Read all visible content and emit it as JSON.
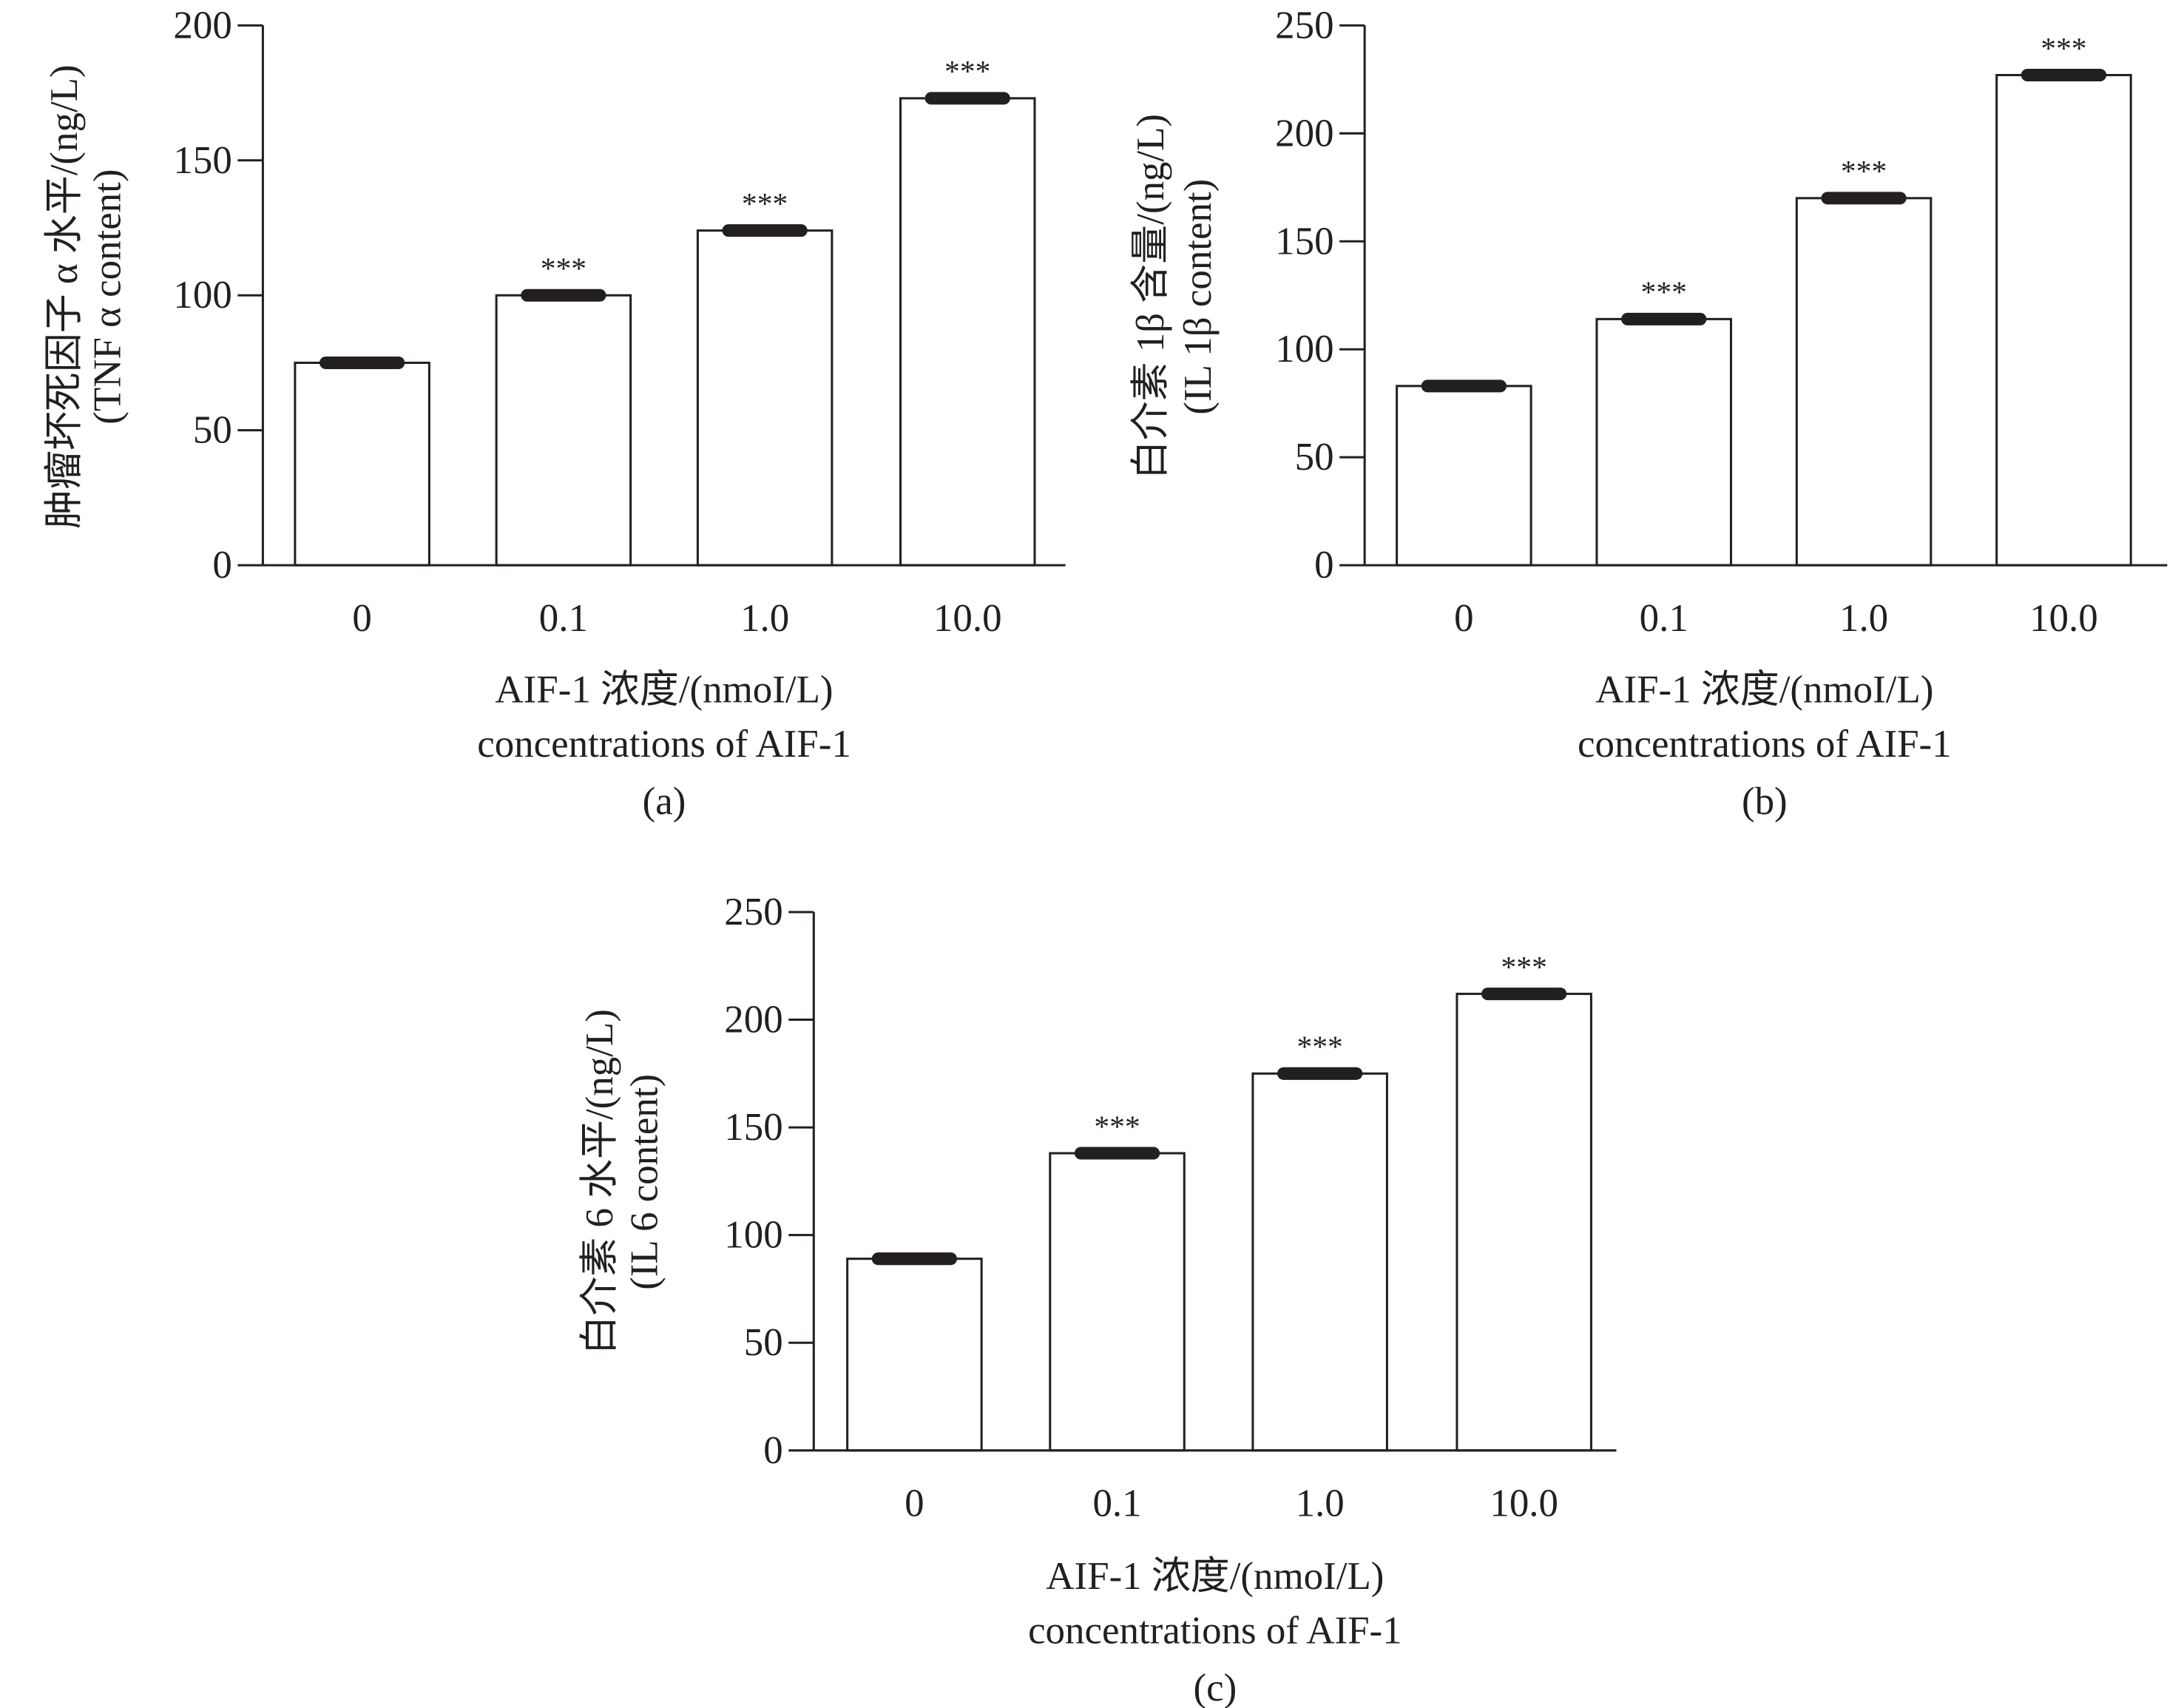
{
  "chart_data": [
    {
      "type": "bar",
      "panel_label": "(a)",
      "categories": [
        "0",
        "0.1",
        "1.0",
        "10.0"
      ],
      "values": [
        75,
        100,
        124,
        173
      ],
      "annotations": [
        "",
        "***",
        "***",
        "***"
      ],
      "ylim": [
        0,
        200
      ],
      "yticks": [
        0,
        50,
        100,
        150,
        200
      ],
      "ylabel": [
        "肿瘤坏死因子 α 水平/(ng/L)",
        "(TNF α content)"
      ],
      "xlabel": [
        "AIF-1 浓度/(nmoI/L)",
        "concentrations of AIF-1"
      ]
    },
    {
      "type": "bar",
      "panel_label": "(b)",
      "categories": [
        "0",
        "0.1",
        "1.0",
        "10.0"
      ],
      "values": [
        83,
        114,
        170,
        227
      ],
      "annotations": [
        "",
        "***",
        "***",
        "***"
      ],
      "ylim": [
        0,
        250
      ],
      "yticks": [
        0,
        50,
        100,
        150,
        200,
        250
      ],
      "ylabel": [
        "白介素 1β 含量/(ng/L)",
        "(IL 1β content)"
      ],
      "xlabel": [
        "AIF-1 浓度/(nmoI/L)",
        "concentrations of AIF-1"
      ]
    },
    {
      "type": "bar",
      "panel_label": "(c)",
      "categories": [
        "0",
        "0.1",
        "1.0",
        "10.0"
      ],
      "values": [
        89,
        138,
        175,
        212
      ],
      "annotations": [
        "",
        "***",
        "***",
        "***"
      ],
      "ylim": [
        0,
        250
      ],
      "yticks": [
        0,
        50,
        100,
        150,
        200,
        250
      ],
      "ylabel": [
        "白介素 6 水平/(ng/L)",
        "(IL 6 content)"
      ],
      "xlabel": [
        "AIF-1 浓度/(nmoI/L)",
        "concentrations of AIF-1"
      ]
    }
  ]
}
